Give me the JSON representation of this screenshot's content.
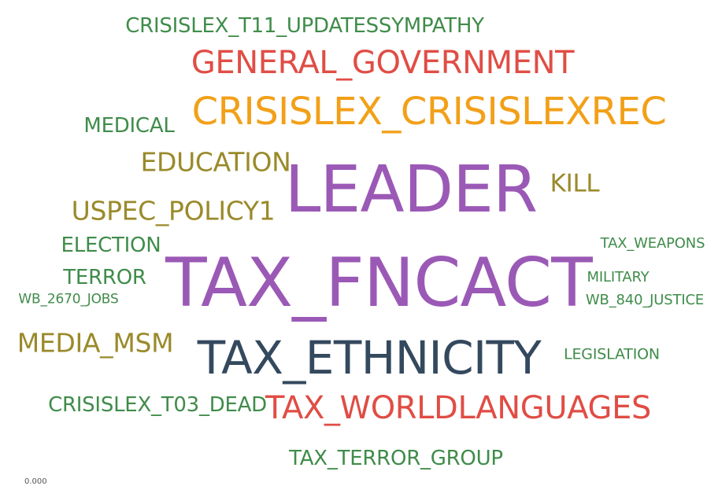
{
  "colors": {
    "green": "#3f8c4a",
    "red": "#e04d45",
    "orange": "#f2a019",
    "olive": "#9a8a2a",
    "purple": "#9b59b6",
    "navy": "#34495e"
  },
  "words": [
    {
      "id": "crisislex-t11-updatessympathy",
      "text": "CRISISLEX_T11_UPDATESSYMPATHY",
      "color": "green"
    },
    {
      "id": "general-government",
      "text": "GENERAL_GOVERNMENT",
      "color": "red"
    },
    {
      "id": "crisislex-crisislexrec",
      "text": "CRISISLEX_CRISISLEXREC",
      "color": "orange"
    },
    {
      "id": "medical",
      "text": "MEDICAL",
      "color": "green"
    },
    {
      "id": "education",
      "text": "EDUCATION",
      "color": "olive"
    },
    {
      "id": "leader",
      "text": "LEADER",
      "color": "purple"
    },
    {
      "id": "kill",
      "text": "KILL",
      "color": "olive"
    },
    {
      "id": "uspec-policy1",
      "text": "USPEC_POLICY1",
      "color": "olive"
    },
    {
      "id": "election",
      "text": "ELECTION",
      "color": "green"
    },
    {
      "id": "tax-weapons",
      "text": "TAX_WEAPONS",
      "color": "green"
    },
    {
      "id": "tax-fncact",
      "text": "TAX_FNCACT",
      "color": "purple"
    },
    {
      "id": "terror",
      "text": "TERROR",
      "color": "green"
    },
    {
      "id": "military",
      "text": "MILITARY",
      "color": "green"
    },
    {
      "id": "wb-2670-jobs",
      "text": "WB_2670_JOBS",
      "color": "green"
    },
    {
      "id": "wb-840-justice",
      "text": "WB_840_JUSTICE",
      "color": "green"
    },
    {
      "id": "media-msm",
      "text": "MEDIA_MSM",
      "color": "olive"
    },
    {
      "id": "tax-ethnicity",
      "text": "TAX_ETHNICITY",
      "color": "navy"
    },
    {
      "id": "legislation",
      "text": "LEGISLATION",
      "color": "green"
    },
    {
      "id": "crisislex-t03-dead",
      "text": "CRISISLEX_T03_DEAD",
      "color": "green"
    },
    {
      "id": "tax-worldlanguages",
      "text": "TAX_WORLDLANGUAGES",
      "color": "red"
    },
    {
      "id": "tax-terror-group",
      "text": "TAX_TERROR_GROUP",
      "color": "green"
    }
  ],
  "footer": {
    "axis_fragment": "0.000"
  }
}
